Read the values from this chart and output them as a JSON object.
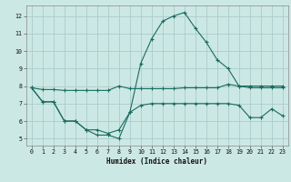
{
  "xlabel": "Humidex (Indice chaleur)",
  "bg_color": "#cce8e4",
  "grid_color": "#aaccca",
  "line_color": "#1a6b60",
  "ylim": [
    4.6,
    12.6
  ],
  "xlim": [
    -0.5,
    23.5
  ],
  "yticks": [
    5,
    6,
    7,
    8,
    9,
    10,
    11,
    12
  ],
  "xticks": [
    0,
    1,
    2,
    3,
    4,
    5,
    6,
    7,
    8,
    9,
    10,
    11,
    12,
    13,
    14,
    15,
    16,
    17,
    18,
    19,
    20,
    21,
    22,
    23
  ],
  "line1_x": [
    0,
    1,
    2,
    3,
    4,
    5,
    6,
    7,
    8,
    9,
    10,
    11,
    12,
    13,
    14,
    15,
    16,
    17,
    18,
    19,
    20,
    21,
    22,
    23
  ],
  "line1_y": [
    7.9,
    7.8,
    7.8,
    7.75,
    7.75,
    7.75,
    7.75,
    7.75,
    8.0,
    7.85,
    7.85,
    7.85,
    7.85,
    7.85,
    7.9,
    7.9,
    7.9,
    7.9,
    8.1,
    8.0,
    8.0,
    8.0,
    8.0,
    8.0
  ],
  "line2_x": [
    0,
    1,
    2,
    3,
    4,
    5,
    6,
    7,
    8,
    9,
    10,
    11,
    12,
    13,
    14,
    15,
    16,
    17,
    18,
    19,
    20,
    21,
    22,
    23
  ],
  "line2_y": [
    7.9,
    7.1,
    7.1,
    6.0,
    6.0,
    5.5,
    5.2,
    5.2,
    5.0,
    6.5,
    9.3,
    10.7,
    11.7,
    12.0,
    12.2,
    11.3,
    10.5,
    9.5,
    9.0,
    8.0,
    7.9,
    7.9,
    7.9,
    7.9
  ],
  "line3_x": [
    0,
    1,
    2,
    3,
    4,
    5,
    6,
    7,
    8,
    9,
    10,
    11,
    12,
    13,
    14,
    15,
    16,
    17,
    18,
    19,
    20,
    21,
    22,
    23
  ],
  "line3_y": [
    7.9,
    7.1,
    7.1,
    6.0,
    6.0,
    5.5,
    5.5,
    5.3,
    5.5,
    6.5,
    6.9,
    7.0,
    7.0,
    7.0,
    7.0,
    7.0,
    7.0,
    7.0,
    7.0,
    6.9,
    6.2,
    6.2,
    6.7,
    6.3
  ]
}
